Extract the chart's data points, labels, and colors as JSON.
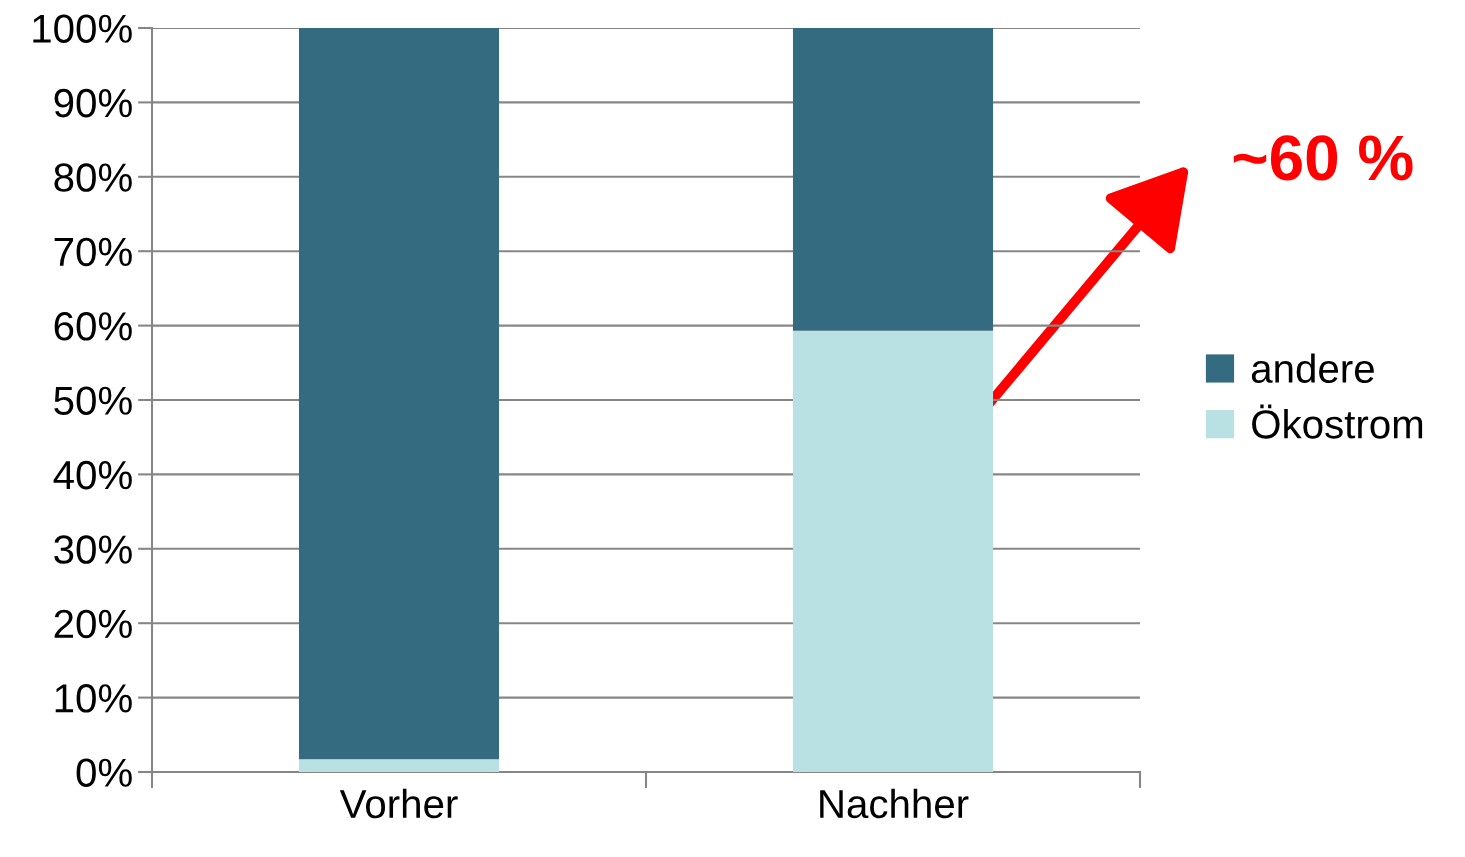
{
  "chart_data": {
    "type": "bar",
    "stacked": true,
    "categories": [
      "Vorher",
      "Nachher"
    ],
    "series": [
      {
        "name": "Ökostrom",
        "color": "#b9e0e2",
        "values": [
          1.7,
          59.3
        ]
      },
      {
        "name": "andere",
        "color": "#356b80",
        "values": [
          98.3,
          40.7
        ]
      }
    ],
    "ylim": [
      0,
      100
    ],
    "yticks": [
      {
        "value": 0,
        "label": "0%"
      },
      {
        "value": 10,
        "label": "10%"
      },
      {
        "value": 20,
        "label": "20%"
      },
      {
        "value": 30,
        "label": "30%"
      },
      {
        "value": 40,
        "label": "40%"
      },
      {
        "value": 50,
        "label": "50%"
      },
      {
        "value": 60,
        "label": "60%"
      },
      {
        "value": 70,
        "label": "70%"
      },
      {
        "value": 80,
        "label": "80%"
      },
      {
        "value": 90,
        "label": "90%"
      },
      {
        "value": 100,
        "label": "100%"
      }
    ],
    "grid": "y",
    "legend": "right",
    "annotations": [
      "~60 %"
    ]
  }
}
